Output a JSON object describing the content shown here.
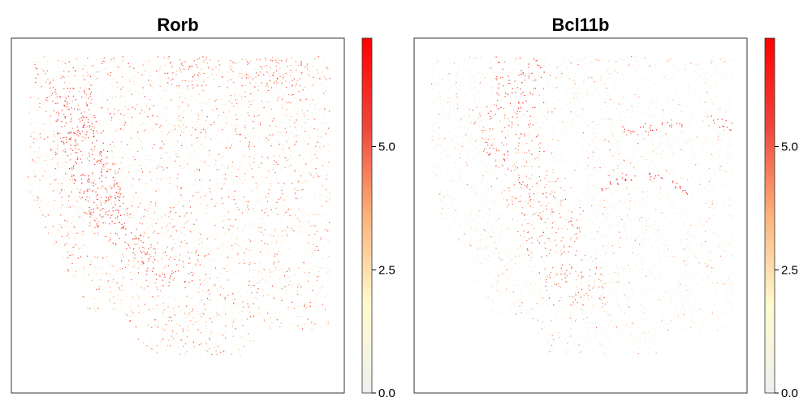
{
  "chart_data": [
    {
      "type": "scatter",
      "title": "Rorb",
      "xlabel": "",
      "ylabel": "",
      "colorbar": {
        "ticks": [
          "0.0",
          "2.5",
          "5.0"
        ],
        "tick_values": [
          0.0,
          2.5,
          5.0
        ],
        "range": [
          0,
          7.2
        ],
        "colormap": [
          "#f0f0f0",
          "#fffacd",
          "#fdb27a",
          "#f0463a",
          "#ff0000"
        ]
      },
      "pattern": "cortex-band"
    },
    {
      "type": "scatter",
      "title": "Bcl11b",
      "xlabel": "",
      "ylabel": "",
      "colorbar": {
        "ticks": [
          "0.0",
          "2.5",
          "5.0"
        ],
        "tick_values": [
          0.0,
          2.5,
          5.0
        ],
        "range": [
          0,
          7.2
        ],
        "colormap": [
          "#f0f0f0",
          "#fffacd",
          "#fdb27a",
          "#f0463a",
          "#ff0000"
        ]
      },
      "pattern": "hippocampus-arcs"
    }
  ]
}
